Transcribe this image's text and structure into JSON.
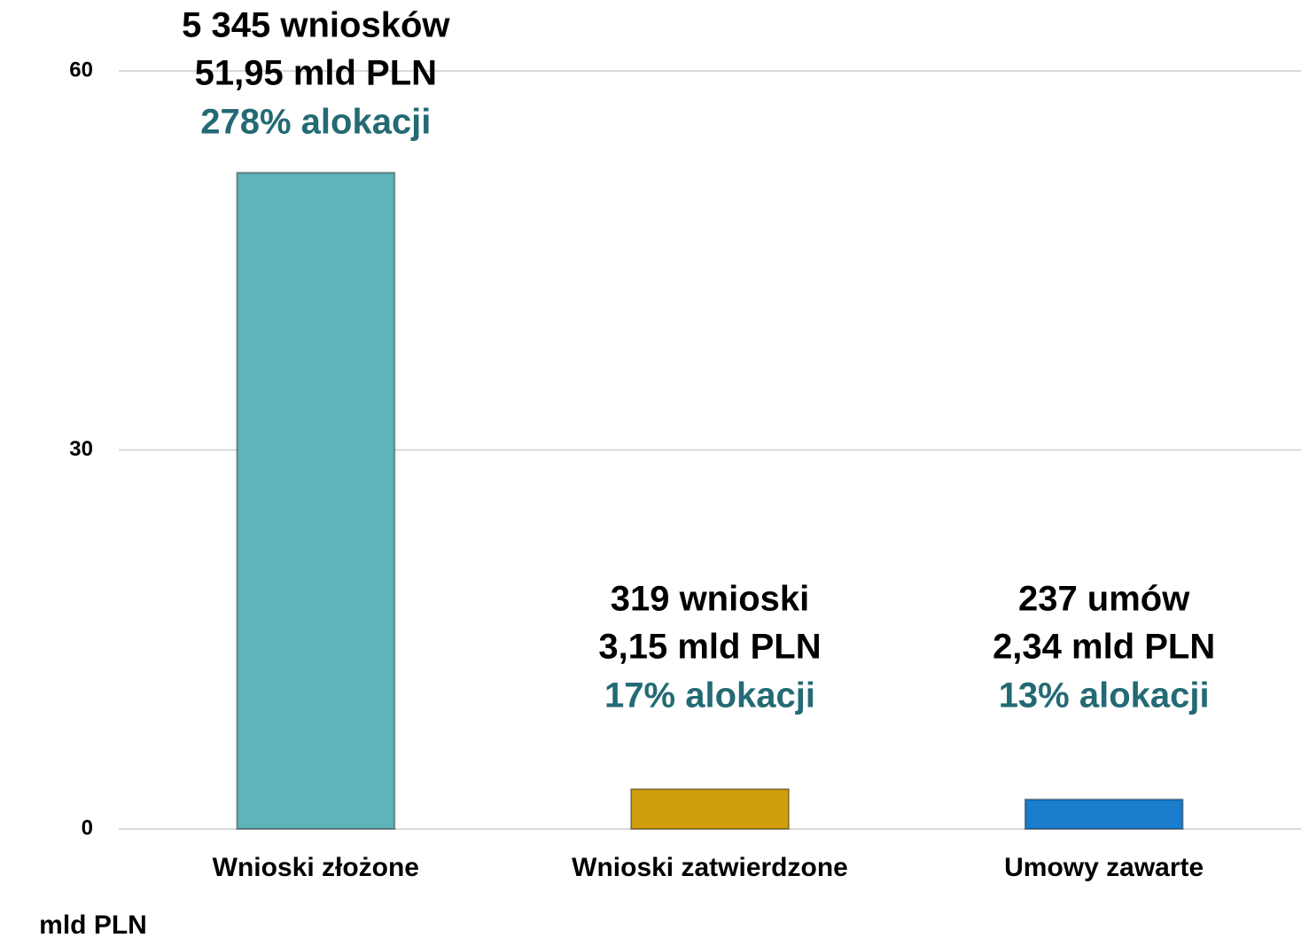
{
  "chart_data": {
    "type": "bar",
    "y_axis_label": "mld PLN",
    "categories": [
      "Wnioski złożone",
      "Wnioski zatwierdzone",
      "Umowy zawarte"
    ],
    "values": [
      51.95,
      3.15,
      2.34
    ],
    "value_labels": [
      "51,95 mld PLN",
      "3,15 mld PLN",
      "2,34 mld PLN"
    ],
    "count_labels": [
      "5 345 wniosków",
      "319 wnioski",
      "237 umów"
    ],
    "allocation_labels": [
      "278% alokacji",
      "17% alokacji",
      "13% alokacji"
    ],
    "colors": [
      "#5fb3b9",
      "#d09e0c",
      "#1a7ccc"
    ],
    "ylim": [
      0,
      60
    ],
    "yticks": [
      0,
      30,
      60
    ],
    "grid": true
  }
}
